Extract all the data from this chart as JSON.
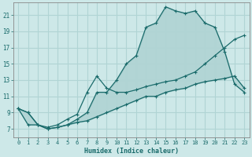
{
  "xlabel": "Humidex (Indice chaleur)",
  "bg_color": "#cde8e8",
  "grid_color": "#b0d4d4",
  "line_color": "#1a6b6b",
  "x_ticks": [
    0,
    1,
    2,
    3,
    4,
    5,
    6,
    7,
    8,
    9,
    10,
    11,
    12,
    13,
    14,
    15,
    16,
    17,
    18,
    19,
    20,
    21,
    22,
    23
  ],
  "y_ticks": [
    7,
    9,
    11,
    13,
    15,
    17,
    19,
    21
  ],
  "ylim": [
    6.0,
    22.5
  ],
  "xlim": [
    -0.5,
    23.5
  ],
  "line1_y": [
    9.5,
    9.0,
    7.5,
    7.0,
    7.2,
    7.5,
    8.2,
    9.0,
    11.5,
    11.5,
    13.0,
    15.0,
    16.0,
    19.5,
    20.0,
    22.0,
    21.5,
    21.2,
    21.5,
    20.0,
    19.5,
    16.5,
    12.5,
    11.5
  ],
  "line2_y": [
    9.5,
    9.0,
    7.5,
    7.2,
    7.5,
    8.2,
    8.8,
    11.5,
    13.5,
    12.0,
    11.5,
    11.5,
    11.8,
    12.2,
    12.5,
    12.8,
    13.0,
    13.5,
    14.0,
    15.0,
    16.0,
    17.0,
    18.0,
    18.5
  ],
  "line3_y": [
    9.5,
    7.5,
    7.5,
    7.0,
    7.2,
    7.5,
    7.8,
    8.0,
    8.5,
    9.0,
    9.5,
    10.0,
    10.5,
    11.0,
    11.0,
    11.5,
    11.8,
    12.0,
    12.5,
    12.8,
    13.0,
    13.2,
    13.5,
    12.0
  ]
}
